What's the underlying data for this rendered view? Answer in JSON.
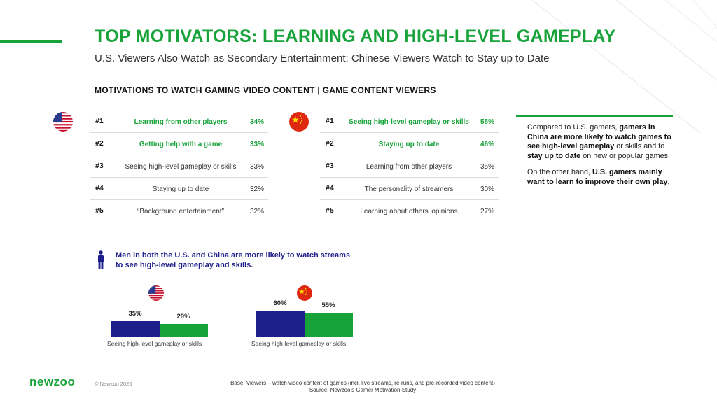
{
  "header": {
    "title": "TOP MOTIVATORS: LEARNING AND HIGH-LEVEL GAMEPLAY",
    "subtitle": "U.S. Viewers Also Watch as Secondary Entertainment; Chinese Viewers Watch to Stay up to Date",
    "section": "MOTIVATIONS TO WATCH GAMING VIDEO CONTENT | GAME CONTENT VIEWERS"
  },
  "colors": {
    "green": "#18a33a",
    "navy": "#1f1f8c",
    "us_red": "#c8102e",
    "us_blue": "#2a3b8f",
    "cn_red": "#de2910",
    "cn_yellow": "#ffde00"
  },
  "us_table": {
    "flag": "us-flag-icon",
    "rows": [
      {
        "rank": "#1",
        "label": "Learning from other players",
        "pct": "34%",
        "highlight": true
      },
      {
        "rank": "#2",
        "label": "Getting help with a game",
        "pct": "33%",
        "highlight": true
      },
      {
        "rank": "#3",
        "label": "Seeing high-level gameplay or skills",
        "pct": "33%",
        "highlight": false
      },
      {
        "rank": "#4",
        "label": "Staying up to date",
        "pct": "32%",
        "highlight": false
      },
      {
        "rank": "#5",
        "label": "“Background entertainment”",
        "pct": "32%",
        "highlight": false
      }
    ]
  },
  "cn_table": {
    "flag": "china-flag-icon",
    "rows": [
      {
        "rank": "#1",
        "label": "Seeing high-level gameplay or skills",
        "pct": "58%",
        "highlight": true
      },
      {
        "rank": "#2",
        "label": "Staying up to date",
        "pct": "46%",
        "highlight": true
      },
      {
        "rank": "#3",
        "label": "Learning from other players",
        "pct": "35%",
        "highlight": false
      },
      {
        "rank": "#4",
        "label": "The personality of streamers",
        "pct": "30%",
        "highlight": false
      },
      {
        "rank": "#5",
        "label": "Learning about others' opinions",
        "pct": "27%",
        "highlight": false
      }
    ]
  },
  "sidebar": {
    "p1_a": "Compared to U.S. gamers, ",
    "p1_b": "gamers in China are more likely to watch games to see high-level gameplay",
    "p1_c": " or skills and to ",
    "p1_d": "stay up to date",
    "p1_e": " on new or popular games.",
    "p2_a": "On the other hand, ",
    "p2_b": "U.S. gamers mainly want to learn to improve their own play",
    "p2_c": "."
  },
  "men_note": {
    "line1": "Men in both the U.S. and China are more likely to watch streams",
    "line2": "to see high-level gameplay and skills.",
    "icon": "man-icon"
  },
  "chart_data": [
    {
      "type": "bar",
      "flag": "us-flag-icon",
      "categories": [
        "Seeing high-level gameplay or skills"
      ],
      "series": [
        {
          "values": [
            35
          ],
          "color": "#1f1f8c"
        },
        {
          "values": [
            29
          ],
          "color": "#18a33a"
        }
      ],
      "value_labels": [
        "35%",
        "29%"
      ],
      "xlabel": "Seeing high-level gameplay or skills",
      "grid": false
    },
    {
      "type": "bar",
      "flag": "china-flag-icon",
      "categories": [
        "Seeing high-level gameplay or skills"
      ],
      "series": [
        {
          "values": [
            60
          ],
          "color": "#1f1f8c"
        },
        {
          "values": [
            55
          ],
          "color": "#18a33a"
        }
      ],
      "value_labels": [
        "60%",
        "55%"
      ],
      "xlabel": "Seeing high-level gameplay or skills",
      "grid": false
    }
  ],
  "footer": {
    "logo": "newzoo",
    "copyright": "© Newzoo 2020",
    "base": "Base: Viewers – watch video content of games (incl. live streams, re-runs, and pre-recorded video content)",
    "source": "Source: Newzoo’s Gamer Motivation Study"
  }
}
